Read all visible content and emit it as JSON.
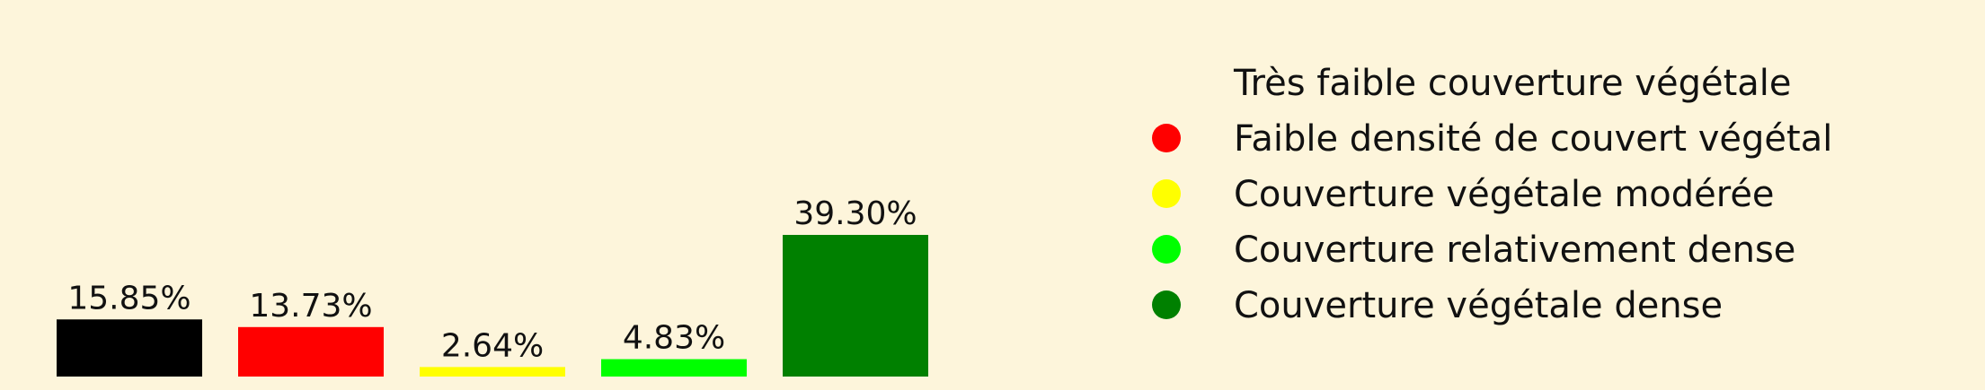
{
  "chart_data": {
    "type": "bar",
    "categories": [
      "Très faible couverture végétale",
      "Faible densité de couvert végétal",
      "Couverture végétale modérée",
      "Couverture relativement dense",
      "Couverture végétale dense"
    ],
    "values": [
      15.85,
      13.73,
      2.64,
      4.83,
      39.3
    ],
    "data_labels": [
      "15.85%",
      "13.73%",
      "2.64%",
      "4.83%",
      "39.30%"
    ],
    "colors": [
      "#000000",
      "#ff0000",
      "#ffff00",
      "#00ff00",
      "#008000"
    ],
    "legend_marker_visible": [
      false,
      true,
      true,
      true,
      true
    ],
    "ylim": [
      0,
      39.3
    ],
    "grid": false,
    "legend_placement": "right",
    "background": "#fdf5db"
  }
}
